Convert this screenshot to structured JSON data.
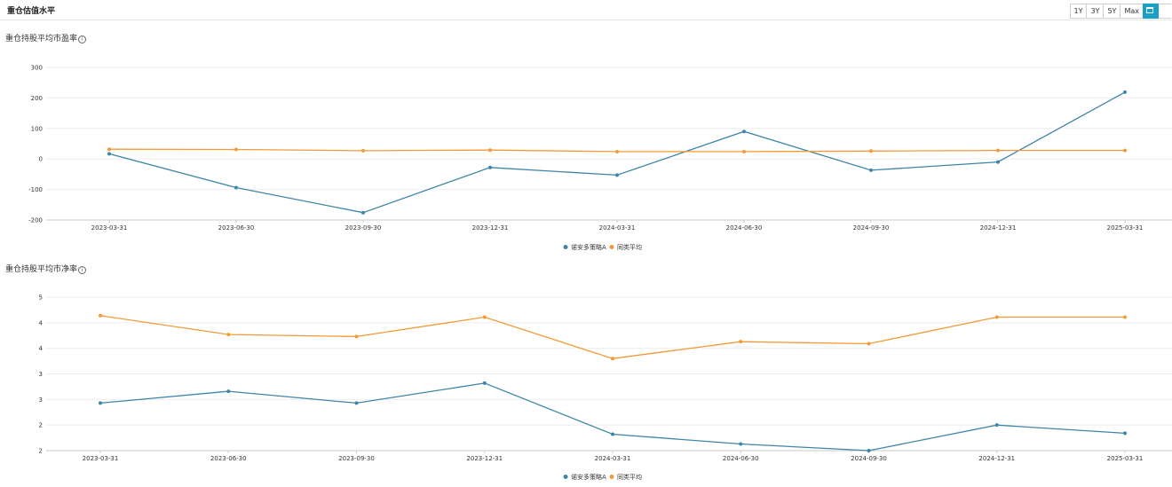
{
  "header": {
    "title": "重仓估值水平",
    "ranges": [
      "1Y",
      "3Y",
      "5Y",
      "Max"
    ]
  },
  "colors": {
    "fund": "#3d86a7",
    "peer": "#f39a36",
    "accent": "#1aa0c8",
    "grid": "#eeeeee"
  },
  "chart_data": [
    {
      "type": "line",
      "title": "重仓持股平均市盈率",
      "categories": [
        "2023-03-31",
        "2023-06-30",
        "2023-09-30",
        "2023-12-31",
        "2024-03-31",
        "2024-06-30",
        "2024-09-30",
        "2024-12-31",
        "2025-03-31"
      ],
      "yticks": [
        "300",
        "200",
        "100",
        "0",
        "-100",
        "-200"
      ],
      "ylim": [
        -200,
        300
      ],
      "series": [
        {
          "name": "诺安多策略A",
          "values": [
            17,
            -94,
            -176,
            -28,
            -53,
            90,
            -37,
            -10,
            219
          ]
        },
        {
          "name": "同类平均",
          "values": [
            32,
            31,
            27,
            29,
            24,
            24,
            26,
            28,
            28
          ]
        }
      ],
      "legend": "bottom-center",
      "grid": true
    },
    {
      "type": "line",
      "title": "重仓持股平均市净率",
      "categories": [
        "2023-03-31",
        "2023-06-30",
        "2023-09-30",
        "2023-12-31",
        "2024-03-31",
        "2024-06-30",
        "2024-09-30",
        "2024-12-31",
        "2025-03-31"
      ],
      "yticks": [
        "5",
        "4",
        "4",
        "3",
        "3",
        "2",
        "2"
      ],
      "ylim": [
        2,
        5
      ],
      "series": [
        {
          "name": "诺安多策略A",
          "values": [
            2.93,
            3.16,
            2.93,
            3.32,
            2.32,
            2.13,
            2.0,
            2.5,
            2.34
          ]
        },
        {
          "name": "同类平均",
          "values": [
            4.64,
            4.27,
            4.23,
            4.61,
            3.8,
            4.13,
            4.09,
            4.61,
            4.61
          ]
        }
      ],
      "legend": "bottom-center",
      "grid": true
    }
  ]
}
